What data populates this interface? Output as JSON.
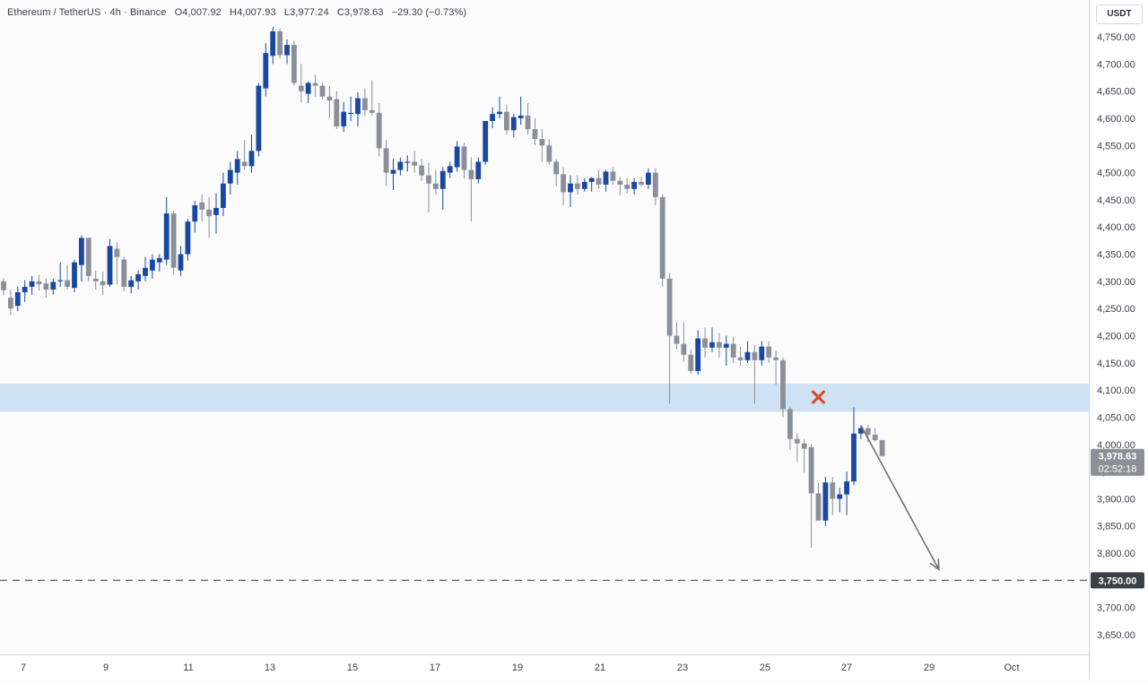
{
  "header": {
    "symbol": "Ethereum / TetherUS · 4h · Binance",
    "open": "O4,007.92",
    "high": "H4,007.93",
    "low": "L3,977.24",
    "close": "C3,978.63",
    "change": "−29.30 (−0.73%)"
  },
  "price_axis": {
    "unit": "USDT",
    "current_price_label": "3,978.63",
    "countdown_label": "02:52:18",
    "level_label": "3,750.00"
  },
  "colors": {
    "up": "#1848a0",
    "down": "#8c8f98",
    "zone": "#cfe2f3",
    "current_price_bg": "#8c8f98",
    "level_bg": "#3b3f48",
    "marker": "#d9472b",
    "arrow": "#6e7178"
  },
  "chart_data": {
    "type": "candlestick",
    "interval": "4h",
    "y_ticks": [
      "4,750.00",
      "4,700.00",
      "4,650.00",
      "4,600.00",
      "4,550.00",
      "4,500.00",
      "4,450.00",
      "4,400.00",
      "4,350.00",
      "4,300.00",
      "4,250.00",
      "4,200.00",
      "4,150.00",
      "4,100.00",
      "4,050.00",
      "4,000.00",
      "3,950.00",
      "3,900.00",
      "3,850.00",
      "3,800.00",
      "3,750.00",
      "3,700.00",
      "3,650.00"
    ],
    "y_tick_values": [
      4750,
      4700,
      4650,
      4600,
      4550,
      4500,
      4450,
      4400,
      4350,
      4300,
      4250,
      4200,
      4150,
      4100,
      4050,
      4000,
      3950,
      3900,
      3850,
      3800,
      3750,
      3700,
      3650
    ],
    "x_ticks": [
      "7",
      "9",
      "11",
      "13",
      "15",
      "17",
      "19",
      "21",
      "23",
      "25",
      "27",
      "29",
      "Oct"
    ],
    "resistance_zone": [
      4060,
      4112
    ],
    "horizontal_level": 3750,
    "current_price": 3978.63,
    "rejection_marker": {
      "bar": 115,
      "price": 4087
    },
    "projection_arrow": {
      "from_bar": 121,
      "from_price": 4035,
      "to_bar": 132,
      "to_price": 3770
    },
    "candles": [
      [
        4300,
        4306,
        4275,
        4284
      ],
      [
        4270,
        4285,
        4238,
        4250
      ],
      [
        4255,
        4290,
        4245,
        4280
      ],
      [
        4280,
        4302,
        4262,
        4290
      ],
      [
        4290,
        4310,
        4275,
        4300
      ],
      [
        4300,
        4312,
        4283,
        4295
      ],
      [
        4296,
        4305,
        4270,
        4285
      ],
      [
        4285,
        4305,
        4276,
        4299
      ],
      [
        4300,
        4335,
        4290,
        4302
      ],
      [
        4302,
        4330,
        4285,
        4290
      ],
      [
        4288,
        4340,
        4280,
        4335
      ],
      [
        4330,
        4385,
        4300,
        4380
      ],
      [
        4380,
        4380,
        4300,
        4310
      ],
      [
        4305,
        4320,
        4285,
        4300
      ],
      [
        4300,
        4318,
        4275,
        4293
      ],
      [
        4294,
        4378,
        4290,
        4365
      ],
      [
        4360,
        4372,
        4295,
        4345
      ],
      [
        4340,
        4345,
        4282,
        4290
      ],
      [
        4290,
        4310,
        4278,
        4302
      ],
      [
        4300,
        4320,
        4285,
        4313
      ],
      [
        4310,
        4345,
        4300,
        4325
      ],
      [
        4320,
        4350,
        4305,
        4340
      ],
      [
        4335,
        4350,
        4318,
        4343
      ],
      [
        4340,
        4455,
        4330,
        4425
      ],
      [
        4425,
        4430,
        4312,
        4325
      ],
      [
        4320,
        4365,
        4310,
        4350
      ],
      [
        4350,
        4415,
        4338,
        4410
      ],
      [
        4410,
        4448,
        4390,
        4440
      ],
      [
        4445,
        4460,
        4410,
        4432
      ],
      [
        4432,
        4455,
        4380,
        4420
      ],
      [
        4422,
        4462,
        4388,
        4435
      ],
      [
        4435,
        4500,
        4420,
        4480
      ],
      [
        4480,
        4520,
        4460,
        4505
      ],
      [
        4500,
        4540,
        4478,
        4525
      ],
      [
        4520,
        4560,
        4505,
        4512
      ],
      [
        4512,
        4570,
        4500,
        4540
      ],
      [
        4540,
        4665,
        4530,
        4660
      ],
      [
        4655,
        4738,
        4640,
        4720
      ],
      [
        4715,
        4768,
        4700,
        4760
      ],
      [
        4760,
        4765,
        4710,
        4716
      ],
      [
        4716,
        4745,
        4700,
        4735
      ],
      [
        4735,
        4742,
        4660,
        4665
      ],
      [
        4660,
        4700,
        4630,
        4650
      ],
      [
        4645,
        4668,
        4628,
        4665
      ],
      [
        4665,
        4680,
        4640,
        4660
      ],
      [
        4660,
        4665,
        4635,
        4640
      ],
      [
        4640,
        4660,
        4600,
        4633
      ],
      [
        4635,
        4650,
        4580,
        4585
      ],
      [
        4585,
        4630,
        4575,
        4612
      ],
      [
        4610,
        4640,
        4595,
        4610
      ],
      [
        4608,
        4648,
        4585,
        4637
      ],
      [
        4637,
        4655,
        4605,
        4615
      ],
      [
        4615,
        4670,
        4605,
        4610
      ],
      [
        4610,
        4628,
        4530,
        4545
      ],
      [
        4545,
        4560,
        4475,
        4500
      ],
      [
        4498,
        4525,
        4468,
        4505
      ],
      [
        4505,
        4528,
        4495,
        4520
      ],
      [
        4520,
        4532,
        4502,
        4520
      ],
      [
        4520,
        4540,
        4500,
        4513
      ],
      [
        4513,
        4525,
        4485,
        4495
      ],
      [
        4495,
        4518,
        4427,
        4480
      ],
      [
        4480,
        4505,
        4460,
        4470
      ],
      [
        4470,
        4510,
        4432,
        4503
      ],
      [
        4500,
        4520,
        4490,
        4512
      ],
      [
        4510,
        4558,
        4502,
        4548
      ],
      [
        4548,
        4555,
        4490,
        4505
      ],
      [
        4505,
        4528,
        4410,
        4488
      ],
      [
        4488,
        4528,
        4480,
        4520
      ],
      [
        4520,
        4590,
        4515,
        4595
      ],
      [
        4595,
        4620,
        4582,
        4608
      ],
      [
        4608,
        4640,
        4600,
        4612
      ],
      [
        4612,
        4625,
        4570,
        4578
      ],
      [
        4578,
        4608,
        4565,
        4602
      ],
      [
        4600,
        4640,
        4588,
        4605
      ],
      [
        4605,
        4628,
        4570,
        4580
      ],
      [
        4580,
        4600,
        4550,
        4562
      ],
      [
        4562,
        4580,
        4520,
        4550
      ],
      [
        4550,
        4562,
        4515,
        4520
      ],
      [
        4520,
        4525,
        4475,
        4497
      ],
      [
        4497,
        4510,
        4440,
        4464
      ],
      [
        4464,
        4495,
        4437,
        4480
      ],
      [
        4480,
        4495,
        4460,
        4470
      ],
      [
        4470,
        4490,
        4465,
        4483
      ],
      [
        4483,
        4492,
        4465,
        4490
      ],
      [
        4490,
        4505,
        4470,
        4478
      ],
      [
        4478,
        4505,
        4465,
        4502
      ],
      [
        4502,
        4510,
        4478,
        4485
      ],
      [
        4485,
        4492,
        4458,
        4478
      ],
      [
        4478,
        4490,
        4462,
        4470
      ],
      [
        4470,
        4490,
        4460,
        4483
      ],
      [
        4483,
        4492,
        4475,
        4478
      ],
      [
        4478,
        4508,
        4470,
        4500
      ],
      [
        4500,
        4508,
        4440,
        4455
      ],
      [
        4455,
        4460,
        4290,
        4305
      ],
      [
        4305,
        4315,
        4075,
        4200
      ],
      [
        4200,
        4225,
        4175,
        4185
      ],
      [
        4185,
        4225,
        4152,
        4165
      ],
      [
        4165,
        4175,
        4130,
        4135
      ],
      [
        4135,
        4210,
        4128,
        4195
      ],
      [
        4195,
        4215,
        4160,
        4178
      ],
      [
        4178,
        4215,
        4170,
        4188
      ],
      [
        4188,
        4205,
        4160,
        4178
      ],
      [
        4178,
        4200,
        4145,
        4185
      ],
      [
        4185,
        4198,
        4150,
        4160
      ],
      [
        4160,
        4180,
        4145,
        4155
      ],
      [
        4155,
        4190,
        4150,
        4170
      ],
      [
        4170,
        4183,
        4075,
        4155
      ],
      [
        4155,
        4190,
        4145,
        4180
      ],
      [
        4180,
        4190,
        4150,
        4160
      ],
      [
        4160,
        4172,
        4110,
        4155
      ],
      [
        4155,
        4160,
        4050,
        4065
      ],
      [
        4065,
        4070,
        3990,
        4010
      ],
      [
        4010,
        4020,
        3968,
        4002
      ],
      [
        4002,
        4010,
        3948,
        3992
      ],
      [
        3995,
        4000,
        3810,
        3910
      ],
      [
        3910,
        3930,
        3860,
        3860
      ],
      [
        3860,
        3940,
        3850,
        3930
      ],
      [
        3930,
        3940,
        3870,
        3900
      ],
      [
        3900,
        3920,
        3875,
        3908
      ],
      [
        3908,
        3950,
        3870,
        3932
      ],
      [
        3932,
        4068,
        3925,
        4020
      ],
      [
        4020,
        4035,
        4010,
        4030
      ],
      [
        4030,
        4036,
        4004,
        4018
      ],
      [
        4018,
        4030,
        4005,
        4008
      ],
      [
        4008,
        4008,
        3977.24,
        3978.63
      ]
    ]
  }
}
